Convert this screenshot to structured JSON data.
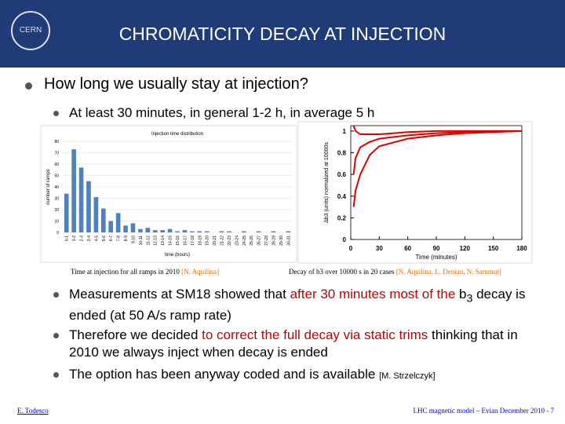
{
  "header": {
    "title": "CHROMATICITY DECAY AT INJECTION",
    "logo": "CERN"
  },
  "bullets": [
    {
      "level": 1,
      "segments": [
        {
          "text": "How long we usually stay at injection?"
        }
      ]
    },
    {
      "level": 2,
      "segments": [
        {
          "text": "At least 30 minutes, in general 1-2 h, in average 5 h"
        }
      ]
    },
    {
      "level": 2,
      "segments": [
        {
          "text": "Measurements at SM18 showed that "
        },
        {
          "text": "after 30 minutes most of the",
          "color": "#c00000"
        },
        {
          "text": " b"
        },
        {
          "text": "3",
          "sub": true
        },
        {
          "text": " decay is ended (at 50 A/s ramp rate)"
        }
      ]
    },
    {
      "level": 2,
      "segments": [
        {
          "text": "Therefore we decided "
        },
        {
          "text": "to correct the full decay via static trims",
          "color": "#c00000"
        },
        {
          "text": " thinking that in 2010 we always inject when decay is ended"
        }
      ]
    },
    {
      "level": 2,
      "segments": [
        {
          "text": "The option has been anyway coded and is available "
        },
        {
          "text": "[M. Strzelczyk]",
          "small": true
        }
      ]
    }
  ],
  "captions": [
    [
      {
        "text": "Time at injection for all ramps in 2010 "
      },
      {
        "text": "[N. Aquilina]",
        "color": "#e07000"
      }
    ],
    [
      {
        "text": "Decay of b3 over 10000 s in 20 cases "
      },
      {
        "text": "[N. Aquilina, L. Deniau, N. Sammut]",
        "color": "#e07000"
      }
    ]
  ],
  "footer": {
    "author": "E. Todesco",
    "event": "LHC magnetic model – Evian December 2010 - 7"
  },
  "chart_data": [
    {
      "type": "bar",
      "title": "Injection time distribution",
      "y_label": "number of ramps",
      "x_label": "time (hours)",
      "categories": [
        "0-1",
        "1-2",
        "2-3",
        "3-4",
        "4-5",
        "5-6",
        "6-7",
        "7-8",
        "8-9",
        "9-10",
        "10-11",
        "11-12",
        "12-13",
        "13-14",
        "14-15",
        "15-16",
        "16-17",
        "17-18",
        "18-19",
        "19-20",
        "20-21",
        "21-22",
        "22-23",
        "23-24",
        "24-25",
        "25-26",
        "26-27",
        "27-28",
        "28-29",
        "29-30",
        "30-31"
      ],
      "values": [
        34,
        73,
        57,
        45,
        31,
        21,
        10,
        17,
        6,
        8,
        3,
        4,
        2,
        2,
        3,
        1,
        2,
        1,
        1,
        1,
        0,
        1,
        1,
        0,
        1,
        0,
        1,
        0,
        1,
        0,
        1
      ],
      "color": "#4f81bd",
      "ylim": [
        0,
        80
      ],
      "yticks": [
        0,
        10,
        20,
        30,
        40,
        50,
        60,
        70,
        80
      ],
      "grid": true
    },
    {
      "type": "line",
      "y_label": "Δb3 (units) normalized at 10000s",
      "x_label": "Time (minutes)",
      "x": [
        3,
        5,
        10,
        20,
        30,
        60,
        90,
        120,
        150,
        180
      ],
      "series": [
        {
          "color": "#e00000",
          "values": [
            1.05,
            1.0,
            0.97,
            0.97,
            0.97,
            0.99,
            1,
            1,
            1,
            1
          ]
        },
        {
          "color": "#e00000",
          "values": [
            0.6,
            0.75,
            0.85,
            0.9,
            0.93,
            0.96,
            0.98,
            0.99,
            1,
            1
          ]
        },
        {
          "color": "#e00000",
          "values": [
            0.3,
            0.45,
            0.6,
            0.78,
            0.86,
            0.93,
            0.96,
            0.98,
            0.99,
            1
          ]
        }
      ],
      "xlim": [
        0,
        180
      ],
      "xticks": [
        0,
        30,
        60,
        90,
        120,
        150,
        180
      ],
      "ylim": [
        0,
        1.05
      ],
      "yticks": [
        0,
        0.2,
        0.4,
        0.6,
        0.8,
        1
      ],
      "grid": false
    }
  ]
}
